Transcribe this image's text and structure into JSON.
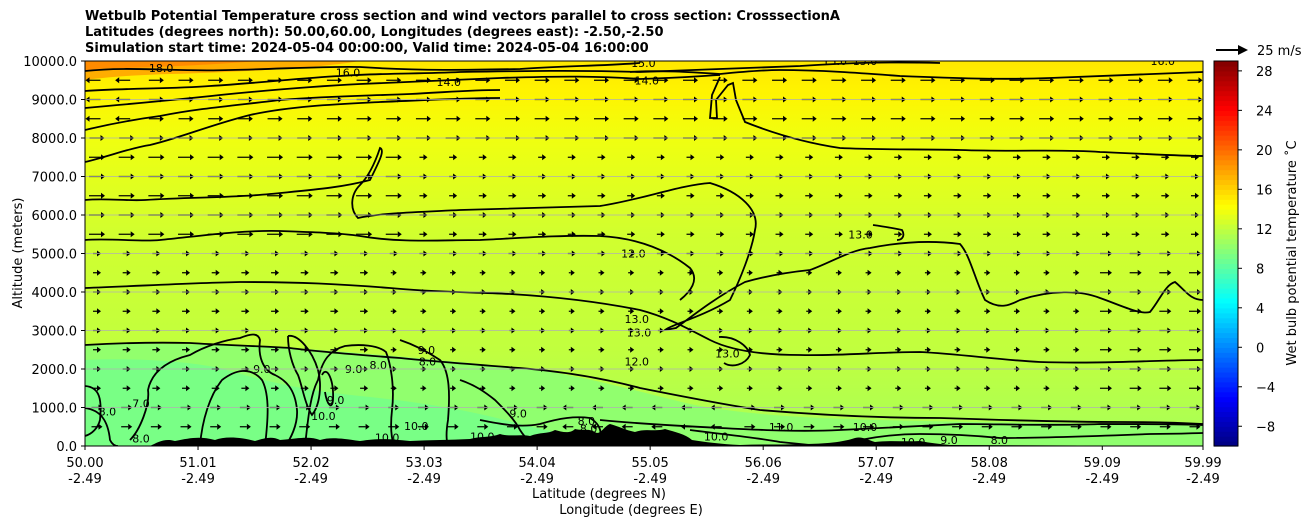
{
  "chart_data": {
    "type": "heatmap",
    "title_lines": [
      "Wetbulb Potential Temperature cross section and wind vectors parallel to cross section: CrosssectionA",
      "Latitudes (degrees north): 50.00,60.00, Longitudes (degrees east): -2.50,-2.50",
      "Simulation start time: 2024-05-04 00:00:00, Valid time: 2024-05-04 16:00:00"
    ],
    "xlabel_1": "Latitude (degrees N)",
    "xlabel_2": "Longitude (degrees E)",
    "ylabel": "Altitude (meters)",
    "colorbar_label": "Wet bulb potential temperature ˚C",
    "vector_key_label": "25 m/s",
    "xlim": [
      50.0,
      59.99
    ],
    "ylim": [
      0,
      10000
    ],
    "x_tick_values": [
      50.0,
      51.01,
      52.02,
      53.03,
      54.04,
      55.05,
      56.06,
      57.07,
      58.08,
      59.09,
      59.99
    ],
    "x_tick_lat_labels": [
      "50.00",
      "51.01",
      "52.02",
      "53.03",
      "54.04",
      "55.05",
      "56.06",
      "57.07",
      "58.08",
      "59.09",
      "59.99"
    ],
    "x_tick_lon_labels": [
      "-2.49",
      "-2.49",
      "-2.49",
      "-2.49",
      "-2.49",
      "-2.49",
      "-2.49",
      "-2.49",
      "-2.49",
      "-2.49",
      "-2.49"
    ],
    "y_tick_values": [
      0,
      1000,
      2000,
      3000,
      4000,
      5000,
      6000,
      7000,
      8000,
      9000,
      10000
    ],
    "y_tick_labels": [
      "0.0",
      "1000.0",
      "2000.0",
      "3000.0",
      "4000.0",
      "5000.0",
      "6000.0",
      "7000.0",
      "8000.0",
      "9000.0",
      "10000.0"
    ],
    "colorbar_range": [
      -10,
      29
    ],
    "colorbar_ticks": [
      -8,
      -4,
      0,
      4,
      8,
      12,
      16,
      20,
      24,
      28
    ],
    "colorbar_tick_labels": [
      "−8",
      "−4",
      "0",
      "4",
      "8",
      "12",
      "16",
      "20",
      "24",
      "28"
    ],
    "colormap": "jet",
    "grid": "horizontal",
    "contour_labels": [
      {
        "text": "18.0",
        "lat": 50.68,
        "alt": 9820
      },
      {
        "text": "16.0",
        "lat": 52.35,
        "alt": 9700
      },
      {
        "text": "14.0",
        "lat": 53.25,
        "alt": 9460
      },
      {
        "text": "15.0",
        "lat": 54.99,
        "alt": 9950
      },
      {
        "text": "14.0",
        "lat": 55.02,
        "alt": 9500
      },
      {
        "text": "15.0",
        "lat": 56.7,
        "alt": 10000
      },
      {
        "text": "15.0",
        "lat": 56.97,
        "alt": 10000
      },
      {
        "text": "16.0",
        "lat": 59.63,
        "alt": 10000
      },
      {
        "text": "12.0",
        "lat": 54.9,
        "alt": 5000
      },
      {
        "text": "13.0",
        "lat": 56.93,
        "alt": 5500
      },
      {
        "text": "13.0",
        "lat": 54.93,
        "alt": 3300
      },
      {
        "text": "13.0",
        "lat": 54.95,
        "alt": 2950
      },
      {
        "text": "12.0",
        "lat": 54.93,
        "alt": 2200
      },
      {
        "text": "13.0",
        "lat": 55.74,
        "alt": 2400
      },
      {
        "text": "9.0",
        "lat": 51.58,
        "alt": 2000
      },
      {
        "text": "9.0",
        "lat": 52.4,
        "alt": 2000
      },
      {
        "text": "8.0",
        "lat": 52.62,
        "alt": 2100
      },
      {
        "text": "9.0",
        "lat": 53.05,
        "alt": 2500
      },
      {
        "text": "8.0",
        "lat": 53.06,
        "alt": 2200
      },
      {
        "text": "9.0",
        "lat": 52.24,
        "alt": 1200
      },
      {
        "text": "10.0",
        "lat": 52.13,
        "alt": 780
      },
      {
        "text": "10.0",
        "lat": 52.96,
        "alt": 520
      },
      {
        "text": "10.0",
        "lat": 53.55,
        "alt": 250
      },
      {
        "text": "10.0",
        "lat": 52.7,
        "alt": 220
      },
      {
        "text": "9.0",
        "lat": 53.87,
        "alt": 850
      },
      {
        "text": "8.0",
        "lat": 54.48,
        "alt": 650
      },
      {
        "text": "8.0",
        "lat": 54.5,
        "alt": 450
      },
      {
        "text": "11.0",
        "lat": 56.22,
        "alt": 500
      },
      {
        "text": "10.0",
        "lat": 55.64,
        "alt": 250
      },
      {
        "text": "10.0",
        "lat": 56.97,
        "alt": 500
      },
      {
        "text": "10.0",
        "lat": 57.4,
        "alt": 100
      },
      {
        "text": "9.0",
        "lat": 57.72,
        "alt": 150
      },
      {
        "text": "8.0",
        "lat": 58.17,
        "alt": 150
      },
      {
        "text": "8.0",
        "lat": 50.2,
        "alt": 900
      },
      {
        "text": "7.0",
        "lat": 50.5,
        "alt": 1100
      },
      {
        "text": "8.0",
        "lat": 50.5,
        "alt": 200
      }
    ]
  }
}
